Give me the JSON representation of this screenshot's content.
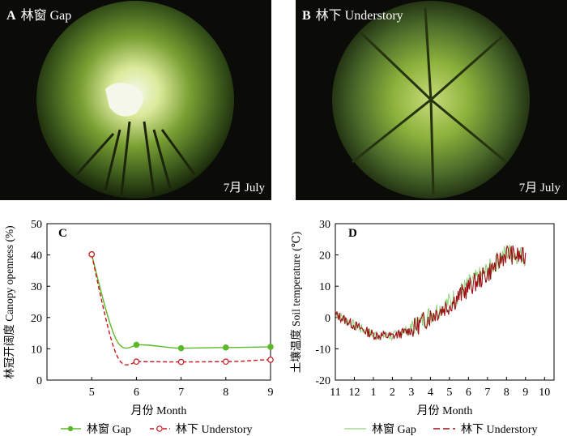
{
  "panels": {
    "a": {
      "letter": "A",
      "title": "林窗 Gap",
      "month": "7月 July"
    },
    "b": {
      "letter": "B",
      "title": "林下 Understory",
      "month": "7月 July"
    }
  },
  "colors": {
    "gap": "#5cb82a",
    "understory": "#c9151b",
    "sky": "#eef4da",
    "foliage": "#7aa033"
  },
  "chart_data": [
    {
      "type": "line",
      "letter": "C",
      "xlabel": "月份 Month",
      "ylabel": "林冠开阔度 Canopy openness (%)",
      "xlim": [
        4,
        9
      ],
      "ylim": [
        0,
        50
      ],
      "xticks": [
        5,
        6,
        7,
        8,
        9
      ],
      "yticks": [
        0,
        10,
        20,
        30,
        40,
        50
      ],
      "legend_position": "bottom",
      "series": [
        {
          "name": "林窗 Gap",
          "key": "gap",
          "style": "solid-filled-marker",
          "x": [
            5,
            6,
            7,
            8,
            9
          ],
          "y": [
            40.2,
            11.3,
            10.2,
            10.4,
            10.6
          ]
        },
        {
          "name": "林下 Understory",
          "key": "understory",
          "style": "dashed-open-marker",
          "x": [
            5,
            6,
            7,
            8,
            9
          ],
          "y": [
            40.2,
            5.9,
            5.8,
            5.9,
            6.5
          ]
        }
      ]
    },
    {
      "type": "line",
      "letter": "D",
      "xlabel": "月份 Month",
      "ylabel": "土壤温度 Soil temperature (℃)",
      "ylim": [
        -20,
        30
      ],
      "yticks": [
        -20,
        -10,
        0,
        10,
        20,
        30
      ],
      "xticks": [
        "11",
        "12",
        "1",
        "2",
        "3",
        "4",
        "5",
        "6",
        "7",
        "8",
        "9",
        "10"
      ],
      "legend_position": "bottom",
      "series": [
        {
          "name": "林窗 Gap",
          "key": "gap",
          "style": "solid-thin",
          "x": [
            "11",
            "12",
            "1",
            "2",
            "3",
            "4",
            "5",
            "6",
            "7",
            "8",
            "9"
          ],
          "y": [
            1.5,
            -2.5,
            -5.5,
            -6,
            -3.5,
            1,
            5,
            10.5,
            15,
            21,
            19.5
          ]
        },
        {
          "name": "林下 Understory",
          "key": "understory",
          "style": "dashed",
          "x": [
            "11",
            "12",
            "1",
            "2",
            "3",
            "4",
            "5",
            "6",
            "7",
            "8",
            "9"
          ],
          "y": [
            1,
            -2.5,
            -5.5,
            -6,
            -4,
            0.5,
            4,
            9.5,
            14,
            20.5,
            19
          ]
        }
      ]
    }
  ]
}
